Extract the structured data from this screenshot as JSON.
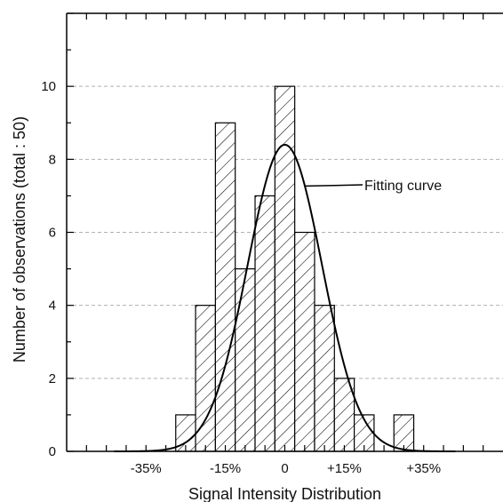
{
  "chart_data": {
    "type": "bar",
    "subtype": "histogram-with-fitted-curve",
    "title": "",
    "xlabel": "Signal Intensity Distribution",
    "ylabel": "Number of observations (total : 50)",
    "ylim": [
      0,
      12
    ],
    "xlim": [
      -0.55,
      0.55
    ],
    "grid": {
      "y": true,
      "style": "dashed",
      "values": [
        2,
        4,
        6,
        8,
        10
      ]
    },
    "y_ticks": [
      "0",
      "2",
      "4",
      "6",
      "8",
      "10"
    ],
    "x_tick_labels": [
      {
        "x": -0.35,
        "label": "-35%"
      },
      {
        "x": -0.15,
        "label": "-15%"
      },
      {
        "x": 0,
        "label": "0"
      },
      {
        "x": 0.15,
        "label": "+15%"
      },
      {
        "x": 0.35,
        "label": "+35%"
      }
    ],
    "bin_width": 0.05,
    "bins": [
      {
        "center": -0.25,
        "count": 1
      },
      {
        "center": -0.2,
        "count": 4
      },
      {
        "center": -0.15,
        "count": 9
      },
      {
        "center": -0.1,
        "count": 5
      },
      {
        "center": -0.05,
        "count": 7
      },
      {
        "center": 0.0,
        "count": 10
      },
      {
        "center": 0.05,
        "count": 6
      },
      {
        "center": 0.1,
        "count": 4
      },
      {
        "center": 0.15,
        "count": 2
      },
      {
        "center": 0.2,
        "count": 1
      },
      {
        "center": 0.3,
        "count": 1
      }
    ],
    "fit_curve": {
      "type": "gaussian",
      "peak": 8.4,
      "mean": 0.0,
      "sd": 0.094
    },
    "annotations": [
      {
        "text": "Fitting curve"
      }
    ],
    "colors": {
      "bar_fill": "#ffffff",
      "hatch": "#000000",
      "curve": "#000000",
      "grid": "#b0b0b0"
    }
  }
}
